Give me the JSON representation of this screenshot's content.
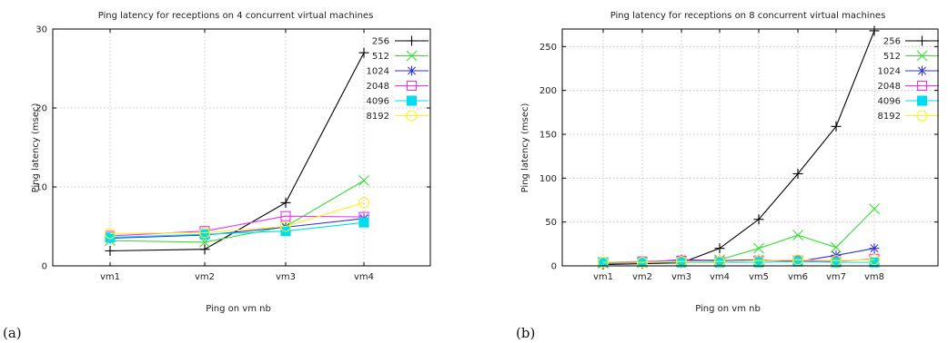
{
  "chart_data": [
    {
      "type": "line",
      "title": "Ping latency for receptions on 4 concurrent virtual machines",
      "xlabel": "Ping on vm nb",
      "ylabel": "Ping latency (msec)",
      "categories": [
        "vm1",
        "vm2",
        "vm3",
        "vm4"
      ],
      "ylim": [
        0,
        30
      ],
      "yticks": [
        0,
        10,
        20,
        30
      ],
      "grid": true,
      "legend_position": "top-right",
      "panel_label": "(a)",
      "series": [
        {
          "name": "256",
          "color": "#000000",
          "marker": "plus",
          "values": [
            1.9,
            2.1,
            8.0,
            27.0
          ]
        },
        {
          "name": "512",
          "color": "#33dd33",
          "marker": "cross",
          "values": [
            3.2,
            3.0,
            5.0,
            10.8
          ]
        },
        {
          "name": "1024",
          "color": "#3333dd",
          "marker": "star",
          "values": [
            3.5,
            3.9,
            4.9,
            6.0
          ]
        },
        {
          "name": "2048",
          "color": "#ee33ee",
          "marker": "square-open",
          "values": [
            3.8,
            4.4,
            6.3,
            6.2
          ]
        },
        {
          "name": "4096",
          "color": "#00ddee",
          "marker": "square-filled",
          "values": [
            3.6,
            4.0,
            4.4,
            5.5
          ]
        },
        {
          "name": "8192",
          "color": "#ffee22",
          "marker": "circle-open",
          "values": [
            4.1,
            4.2,
            5.0,
            8.0
          ]
        }
      ]
    },
    {
      "type": "line",
      "title": "Ping latency for receptions on 8 concurrent virtual machines",
      "xlabel": "Ping on vm nb",
      "ylabel": "Ping latency (msec)",
      "categories": [
        "vm1",
        "vm2",
        "vm3",
        "vm4",
        "vm5",
        "vm6",
        "vm7",
        "vm8"
      ],
      "ylim": [
        0,
        270
      ],
      "yticks": [
        0,
        50,
        100,
        150,
        200,
        250
      ],
      "grid": true,
      "legend_position": "top-right",
      "panel_label": "(b)",
      "series": [
        {
          "name": "256",
          "color": "#000000",
          "marker": "plus",
          "values": [
            1.5,
            2.5,
            3.5,
            20,
            53,
            105,
            159,
            268
          ]
        },
        {
          "name": "512",
          "color": "#33dd33",
          "marker": "cross",
          "values": [
            3,
            4,
            5,
            7,
            20,
            35,
            21,
            65
          ]
        },
        {
          "name": "1024",
          "color": "#3333dd",
          "marker": "star",
          "values": [
            3,
            4,
            7,
            6,
            7,
            5,
            12,
            20
          ]
        },
        {
          "name": "2048",
          "color": "#ee33ee",
          "marker": "square-open",
          "values": [
            4,
            5,
            6,
            5,
            6,
            6,
            5,
            8
          ]
        },
        {
          "name": "4096",
          "color": "#00ddee",
          "marker": "square-filled",
          "values": [
            4,
            4,
            4,
            4,
            4,
            5,
            4,
            4
          ]
        },
        {
          "name": "8192",
          "color": "#ffee22",
          "marker": "circle-open",
          "values": [
            4,
            4,
            5,
            5,
            6,
            7,
            6,
            7
          ]
        }
      ]
    }
  ]
}
